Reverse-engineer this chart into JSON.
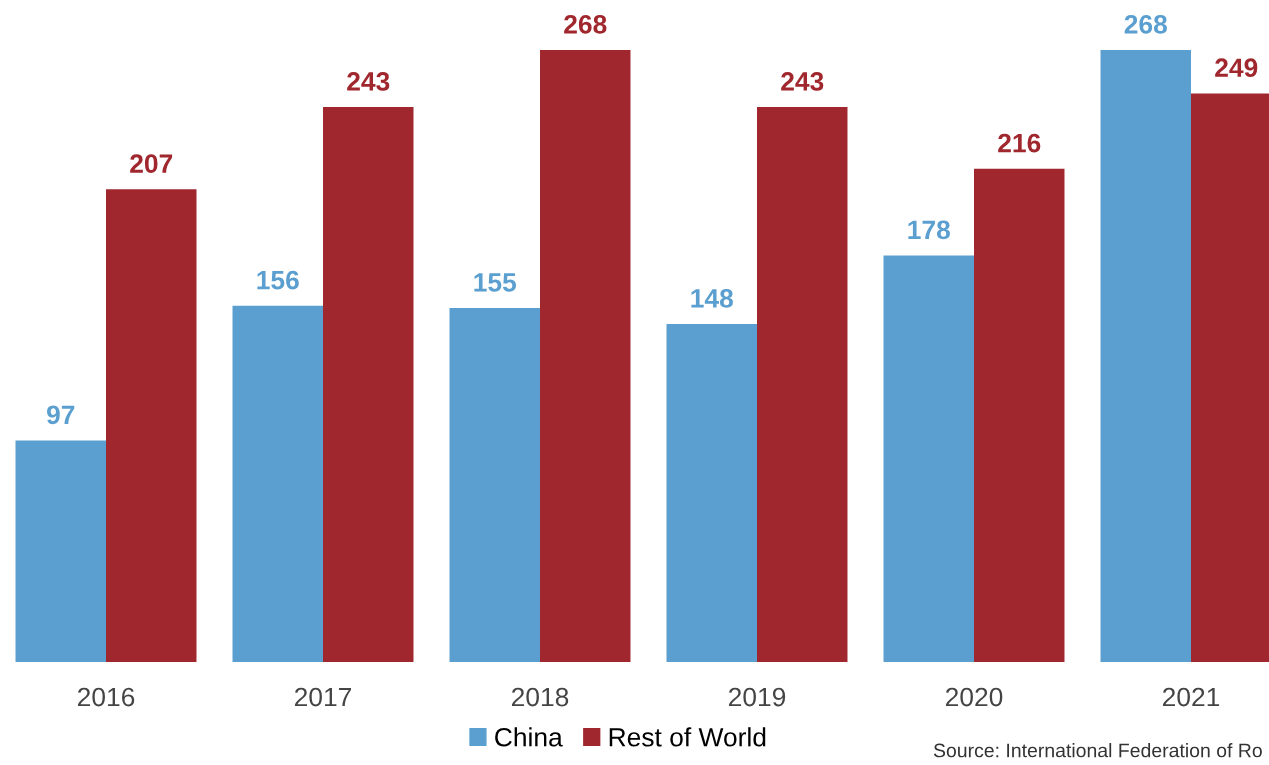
{
  "chart_data": {
    "type": "bar",
    "categories": [
      "2016",
      "2017",
      "2018",
      "2019",
      "2020",
      "2021"
    ],
    "series": [
      {
        "name": "China",
        "color": "#5a9fcf",
        "values": [
          97,
          156,
          155,
          148,
          178,
          268
        ]
      },
      {
        "name": "Rest of World",
        "color": "#a0272d",
        "values": [
          207,
          243,
          268,
          243,
          216,
          249
        ]
      }
    ],
    "data_labels": true,
    "grid": false,
    "legend": "bottom",
    "annotations": [
      "Source: International Federation of Ro"
    ]
  }
}
